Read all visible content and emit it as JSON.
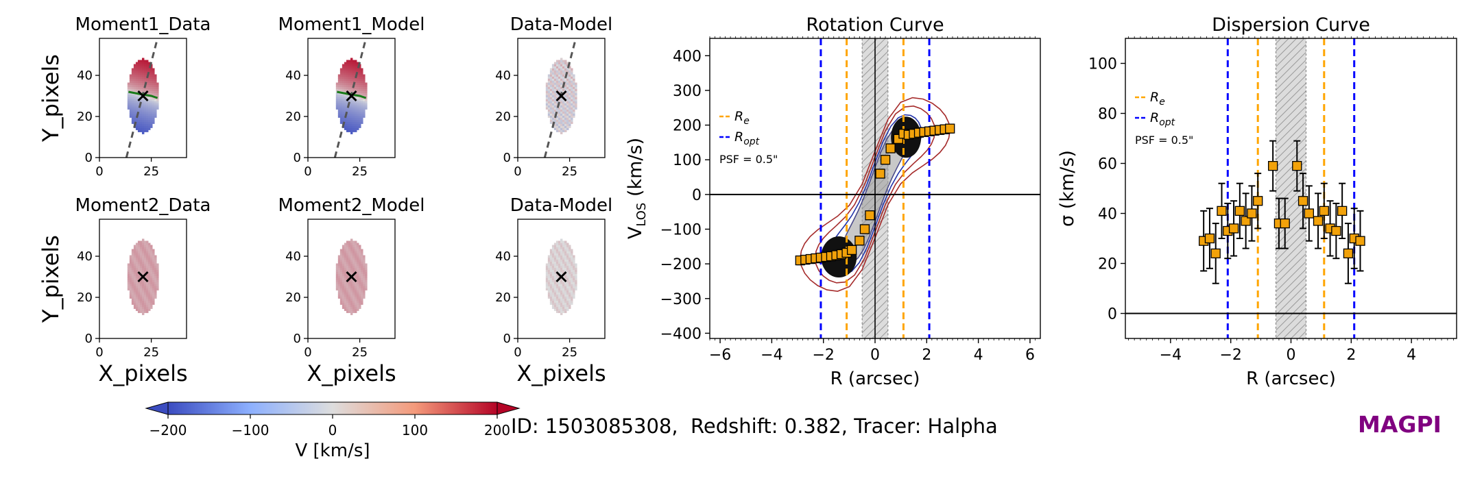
{
  "colors": {
    "orange": "#ffa500",
    "blue": "#0000ff",
    "marker": "#f2a20a",
    "logo": "#800080",
    "contour_red": "#a52a2a",
    "contour_blue": "#2233aa"
  },
  "caption": {
    "id_label": "ID: 1503085308",
    "redshift_label": "Redshift: 0.382",
    "tracer_label": "Tracer: Halpha"
  },
  "logo": "MAGPI",
  "colorbar": {
    "label": "V [km/s]",
    "range": [
      -200,
      200
    ],
    "ticks": [
      "−200",
      "−100",
      "0",
      "100",
      "200"
    ]
  },
  "chart_data": [
    {
      "type": "heatmap",
      "panels": [
        {
          "title": "Moment1_Data",
          "kind": "moment1",
          "ylabel": "Y_pixels",
          "pa_line": true
        },
        {
          "title": "Moment1_Model",
          "kind": "moment1",
          "pa_line": true
        },
        {
          "title": "Data-Model",
          "kind": "residual",
          "pa_line": true
        },
        {
          "title": "Moment2_Data",
          "kind": "moment2",
          "ylabel": "Y_pixels",
          "xlabel": "X_pixels"
        },
        {
          "title": "Moment2_Model",
          "kind": "moment2",
          "xlabel": "X_pixels"
        },
        {
          "title": "Data-Model",
          "kind": "residual2",
          "xlabel": "X_pixels"
        }
      ],
      "xlim": [
        0,
        42
      ],
      "ylim": [
        0,
        58
      ],
      "xticks": [
        0,
        25
      ],
      "yticks": [
        0,
        20,
        40
      ],
      "center": {
        "x": 21,
        "y": 30
      }
    },
    {
      "type": "scatter",
      "title": "Rotation Curve",
      "xlabel": "R (arcsec)",
      "ylabel_main": "V",
      "ylabel_sub": "LOS",
      "ylabel_unit": " (km/s)",
      "xlim": [
        -6.4,
        6.4
      ],
      "ylim": [
        -415,
        450
      ],
      "xticks": [
        -6,
        -4,
        -2,
        0,
        2,
        4,
        6
      ],
      "yticks": [
        -400,
        -300,
        -200,
        -100,
        0,
        100,
        200,
        300,
        400
      ],
      "psf_band": [
        -0.5,
        0.5
      ],
      "re_lines": [
        -1.1,
        1.1
      ],
      "ropt_lines": [
        -2.1,
        2.1
      ],
      "legend": {
        "re": "R",
        "re_sub": "e",
        "ropt": "R",
        "ropt_sub": "opt",
        "psf": "PSF = 0.5\""
      },
      "points": [
        [
          -2.9,
          -190
        ],
        [
          -2.7,
          -188
        ],
        [
          -2.5,
          -186
        ],
        [
          -2.3,
          -184
        ],
        [
          -2.1,
          -182
        ],
        [
          -1.9,
          -180
        ],
        [
          -1.7,
          -178
        ],
        [
          -1.5,
          -175
        ],
        [
          -1.3,
          -172
        ],
        [
          -1.1,
          -168
        ],
        [
          -0.9,
          -160
        ],
        [
          -0.6,
          -133
        ],
        [
          -0.4,
          -100
        ],
        [
          -0.2,
          -60
        ],
        [
          0.2,
          60
        ],
        [
          0.4,
          100
        ],
        [
          0.6,
          133
        ],
        [
          0.9,
          160
        ],
        [
          1.1,
          175
        ],
        [
          1.3,
          172
        ],
        [
          1.5,
          175
        ],
        [
          1.7,
          178
        ],
        [
          1.9,
          180
        ],
        [
          2.1,
          182
        ],
        [
          2.3,
          184
        ],
        [
          2.5,
          186
        ],
        [
          2.7,
          188
        ],
        [
          2.9,
          190
        ]
      ]
    },
    {
      "type": "scatter",
      "title": "Dispersion Curve",
      "xlabel": "R (arcsec)",
      "ylabel": "σ (km/s)",
      "xlim": [
        -5.5,
        5.5
      ],
      "ylim": [
        -10,
        110
      ],
      "xticks": [
        -4,
        -2,
        0,
        2,
        4
      ],
      "yticks": [
        0,
        20,
        40,
        60,
        80,
        100
      ],
      "psf_band": [
        -0.5,
        0.5
      ],
      "re_lines": [
        -1.1,
        1.1
      ],
      "ropt_lines": [
        -2.1,
        2.1
      ],
      "legend": {
        "re": "R",
        "re_sub": "e",
        "ropt": "R",
        "ropt_sub": "opt",
        "psf": "PSF = 0.5\""
      },
      "points": [
        [
          -2.9,
          29,
          12
        ],
        [
          -2.7,
          30,
          12
        ],
        [
          -2.5,
          24,
          12
        ],
        [
          -2.3,
          41,
          11
        ],
        [
          -2.1,
          33,
          11
        ],
        [
          -1.9,
          34,
          11
        ],
        [
          -1.7,
          41,
          11
        ],
        [
          -1.5,
          37,
          11
        ],
        [
          -1.3,
          40,
          11
        ],
        [
          -1.1,
          45,
          11
        ],
        [
          -0.6,
          59,
          10
        ],
        [
          -0.4,
          36,
          10
        ],
        [
          -0.2,
          36,
          10
        ],
        [
          0.2,
          59,
          10
        ],
        [
          0.4,
          45,
          11
        ],
        [
          0.6,
          40,
          11
        ],
        [
          0.9,
          37,
          11
        ],
        [
          1.1,
          41,
          11
        ],
        [
          1.3,
          34,
          11
        ],
        [
          1.5,
          33,
          11
        ],
        [
          1.7,
          41,
          11
        ],
        [
          1.9,
          24,
          12
        ],
        [
          2.1,
          30,
          12
        ],
        [
          2.3,
          29,
          12
        ]
      ]
    }
  ]
}
